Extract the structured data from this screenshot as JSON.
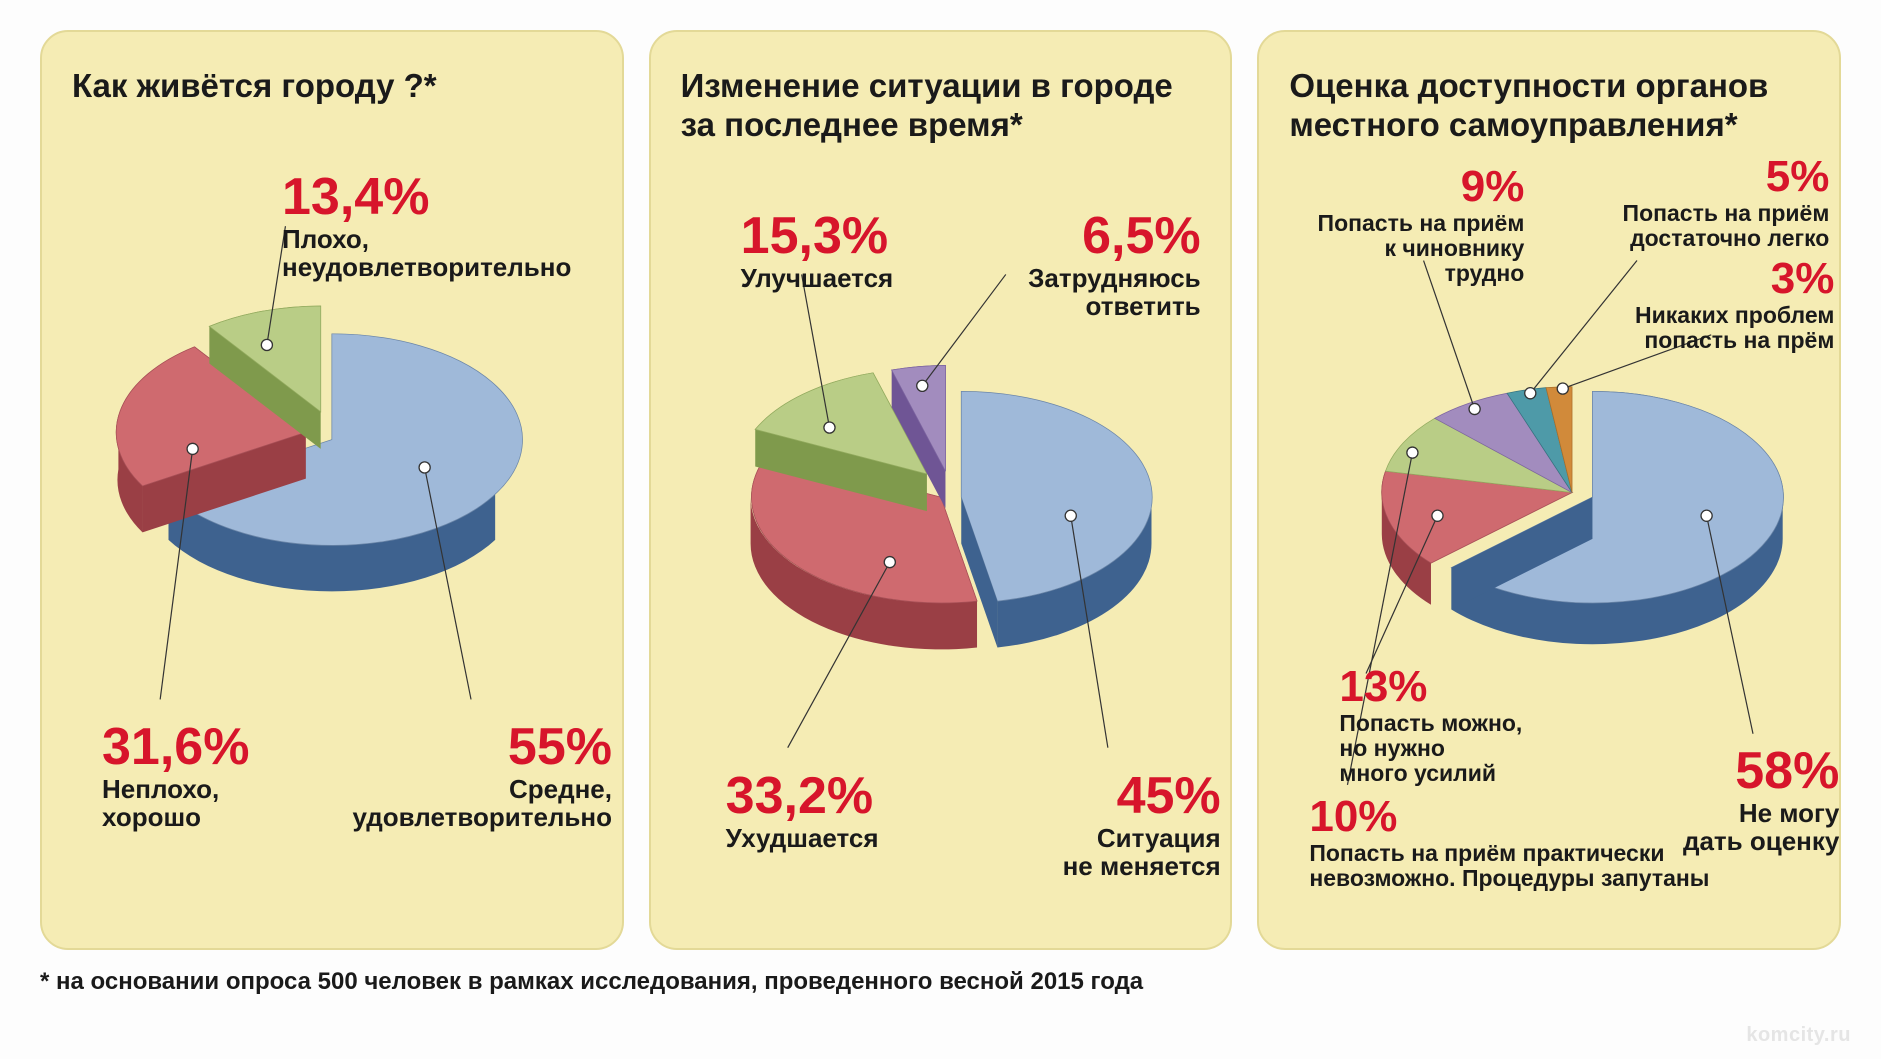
{
  "page": {
    "background": "#fdfdfd",
    "panel_background": "#f5ecb4",
    "panel_border": "#e3d997",
    "footnote": "* на основании опроса 500 человек в рамках исследования, проведенного весной 2015 года",
    "watermark": "komcity.ru",
    "pct_color": "#d7152b",
    "text_color": "#1a1a1a"
  },
  "charts": [
    {
      "title": "Как живётся городу ?*",
      "type": "pie-3d",
      "slices": [
        {
          "value": 55,
          "pct": "55%",
          "label": "Средне,\nудовлетворительно",
          "color_top": "#9fb9d9",
          "color_side": "#3e628f",
          "exploded": false
        },
        {
          "value": 31.6,
          "pct": "31,6%",
          "label": "Неплохо,\nхорошо",
          "color_top": "#cf6a6f",
          "color_side": "#9a3f45",
          "exploded": true
        },
        {
          "value": 13.4,
          "pct": "13,4%",
          "label": "Плохо,\nнеудовлетворительно",
          "color_top": "#b9cd86",
          "color_side": "#7f9a4c",
          "exploded": true
        }
      ]
    },
    {
      "title": "Изменение ситуации в городе\nза последнее время*",
      "type": "pie-3d",
      "slices": [
        {
          "value": 45,
          "pct": "45%",
          "label": "Ситуация\nне меняется",
          "color_top": "#9fb9d9",
          "color_side": "#3e628f",
          "exploded": true
        },
        {
          "value": 33.2,
          "pct": "33,2%",
          "label": "Ухудшается",
          "color_top": "#cf6a6f",
          "color_side": "#9a3f45",
          "exploded": false
        },
        {
          "value": 15.3,
          "pct": "15,3%",
          "label": "Улучшается",
          "color_top": "#b9cd86",
          "color_side": "#7f9a4c",
          "exploded": true
        },
        {
          "value": 6.5,
          "pct": "6,5%",
          "label": "Затрудняюсь\nответить",
          "color_top": "#a28cbe",
          "color_side": "#6f5595",
          "exploded": true
        }
      ]
    },
    {
      "title": "Оценка доступности органов\nместного самоуправления*",
      "type": "pie-3d",
      "slices": [
        {
          "value": 58,
          "pct": "58%",
          "label": "Не могу\nдать оценку",
          "color_top": "#9fb9d9",
          "color_side": "#3e628f",
          "exploded": true
        },
        {
          "value": 13,
          "pct": "13%",
          "label": "Попасть можно,\nно нужно\nмного усилий",
          "color_top": "#cf6a6f",
          "color_side": "#9a3f45",
          "exploded": false
        },
        {
          "value": 10,
          "pct": "10%",
          "label": "Попасть на приём практически\nневозможно. Процедуры запутаны",
          "color_top": "#b9cd86",
          "color_side": "#7f9a4c",
          "exploded": false
        },
        {
          "value": 9,
          "pct": "9%",
          "label": "Попасть на приём\nк чиновнику трудно",
          "color_top": "#a28cbe",
          "color_side": "#6f5595",
          "exploded": false
        },
        {
          "value": 5,
          "pct": "5%",
          "label": "Попасть на приём\nдостаточно легко",
          "color_top": "#4e9aa8",
          "color_side": "#2d6c78",
          "exploded": false
        },
        {
          "value": 3,
          "pct": "3%",
          "label": "Никаких проблем\nпопасть на прём",
          "color_top": "#d18a3a",
          "color_side": "#a2641f",
          "exploded": false
        }
      ]
    }
  ],
  "style": {
    "title_fontsize": 33,
    "pct_fontsize_lg": 52,
    "pct_fontsize_md": 44,
    "pct_fontsize_sm": 38,
    "desc_fontsize": 26,
    "footnote_fontsize": 24,
    "font_family": "Arial Narrow"
  }
}
